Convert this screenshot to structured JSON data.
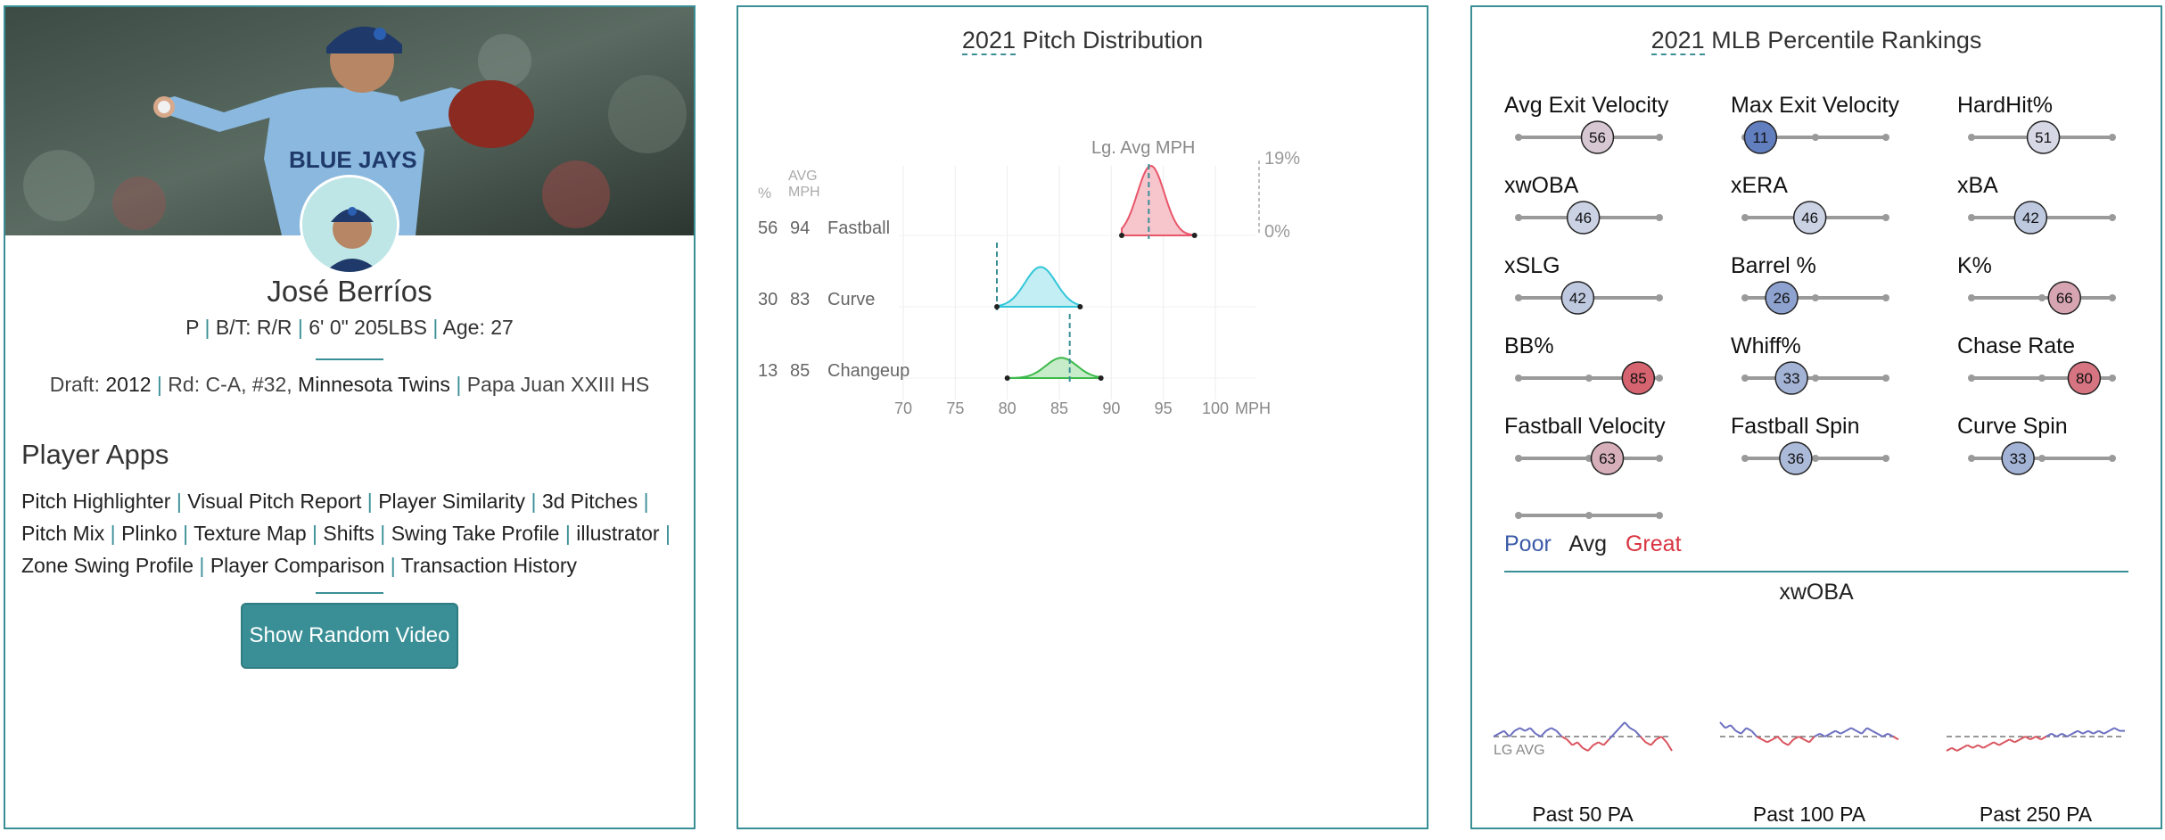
{
  "player": {
    "name": "José Berríos",
    "position": "P",
    "bats_throws": "B/T: R/R",
    "height_weight": "6' 0\" 205LBS",
    "age": "Age: 27",
    "draft_label": "Draft:",
    "draft_year": "2012",
    "draft_round": "Rd: C-A, #32,",
    "draft_team": "Minnesota Twins",
    "school": "Papa Juan XXIII HS",
    "hero_jersey_text": "BLUE JAYS"
  },
  "apps": {
    "title": "Player Apps",
    "links": [
      "Pitch Highlighter",
      "Visual Pitch Report",
      "Player Similarity",
      "3d Pitches",
      "Pitch Mix",
      "Plinko",
      "Texture Map",
      "Shifts",
      "Swing Take Profile",
      "illustrator",
      "Zone Swing Profile",
      "Player Comparison",
      "Transaction History"
    ],
    "button_label": "Show Random Video"
  },
  "pitch_distribution": {
    "year": "2021",
    "title": "Pitch Distribution",
    "col_pct": "%",
    "col_avg1": "AVG",
    "col_avg2": "MPH",
    "lg_avg_label": "Lg. Avg MPH",
    "pct_top": "19%",
    "pct_bottom": "0%",
    "x_unit": "MPH",
    "x_ticks": [
      70,
      75,
      80,
      85,
      90,
      95,
      100
    ],
    "pitches": [
      {
        "pct": "56",
        "mph": "94",
        "name": "Fastball",
        "mean": 93.8,
        "sd": 1.3,
        "min": 91,
        "max": 98,
        "lg_avg": 93.6,
        "color": "#e8566a",
        "fill": "#f7c5cc"
      },
      {
        "pct": "30",
        "mph": "83",
        "name": "Curve",
        "mean": 83.2,
        "sd": 1.5,
        "min": 79,
        "max": 87,
        "lg_avg": 79,
        "color": "#33c6d9",
        "fill": "#c2eef4"
      },
      {
        "pct": "13",
        "mph": "85",
        "name": "Changeup",
        "mean": 85.2,
        "sd": 1.5,
        "min": 80,
        "max": 89,
        "lg_avg": 86,
        "color": "#3bb94a",
        "fill": "#c7ecc9"
      }
    ]
  },
  "percentiles": {
    "year": "2021",
    "title": "MLB Percentile Rankings",
    "metrics": [
      {
        "label": "Avg Exit Velocity",
        "value": "56",
        "pct": 56
      },
      {
        "label": "Max Exit Velocity",
        "value": "11",
        "pct": 11
      },
      {
        "label": "HardHit%",
        "value": "51",
        "pct": 51
      },
      {
        "label": "xwOBA",
        "value": "46",
        "pct": 46
      },
      {
        "label": "xERA",
        "value": "46",
        "pct": 46
      },
      {
        "label": "xBA",
        "value": "42",
        "pct": 42
      },
      {
        "label": "xSLG",
        "value": "42",
        "pct": 42
      },
      {
        "label": "Barrel %",
        "value": "26",
        "pct": 26
      },
      {
        "label": "K%",
        "value": "66",
        "pct": 66
      },
      {
        "label": "BB%",
        "value": "85",
        "pct": 85
      },
      {
        "label": "Whiff%",
        "value": "33",
        "pct": 33
      },
      {
        "label": "Chase Rate",
        "value": "80",
        "pct": 80
      },
      {
        "label": "Fastball Velocity",
        "value": "63",
        "pct": 63
      },
      {
        "label": "Fastball Spin",
        "value": "36",
        "pct": 36
      },
      {
        "label": "Curve Spin",
        "value": "33",
        "pct": 33
      }
    ],
    "legend_poor": "Poor",
    "legend_avg": "Avg",
    "legend_great": "Great",
    "colors": {
      "poor": "#3b5aa8",
      "great": "#d93340",
      "track": "#999999"
    }
  },
  "xwoba": {
    "title": "xwOBA",
    "lg_avg_label": "LG AVG",
    "windows": [
      {
        "label": "Past 50 PA",
        "values": [
          0.31,
          0.32,
          0.33,
          0.31,
          0.33,
          0.34,
          0.33,
          0.34,
          0.32,
          0.31,
          0.33,
          0.34,
          0.33,
          0.31,
          0.3,
          0.28,
          0.29,
          0.27,
          0.26,
          0.28,
          0.29,
          0.28,
          0.3,
          0.32,
          0.34,
          0.36,
          0.34,
          0.33,
          0.31,
          0.29,
          0.28,
          0.3,
          0.31,
          0.29,
          0.26
        ]
      },
      {
        "label": "Past 100 PA",
        "values": [
          0.36,
          0.34,
          0.35,
          0.33,
          0.32,
          0.34,
          0.33,
          0.31,
          0.3,
          0.29,
          0.3,
          0.31,
          0.29,
          0.28,
          0.3,
          0.31,
          0.3,
          0.29,
          0.31,
          0.32,
          0.31,
          0.32,
          0.33,
          0.32,
          0.33,
          0.34,
          0.33,
          0.32,
          0.34,
          0.33,
          0.32,
          0.31,
          0.32,
          0.31,
          0.3
        ]
      },
      {
        "label": "Past 250 PA",
        "values": [
          0.26,
          0.27,
          0.26,
          0.27,
          0.28,
          0.27,
          0.28,
          0.27,
          0.28,
          0.29,
          0.28,
          0.29,
          0.3,
          0.29,
          0.3,
          0.31,
          0.3,
          0.31,
          0.3,
          0.31,
          0.32,
          0.31,
          0.32,
          0.31,
          0.32,
          0.33,
          0.32,
          0.33,
          0.32,
          0.33,
          0.32,
          0.33,
          0.34,
          0.33,
          0.33
        ]
      }
    ],
    "lg_avg": 0.31
  }
}
